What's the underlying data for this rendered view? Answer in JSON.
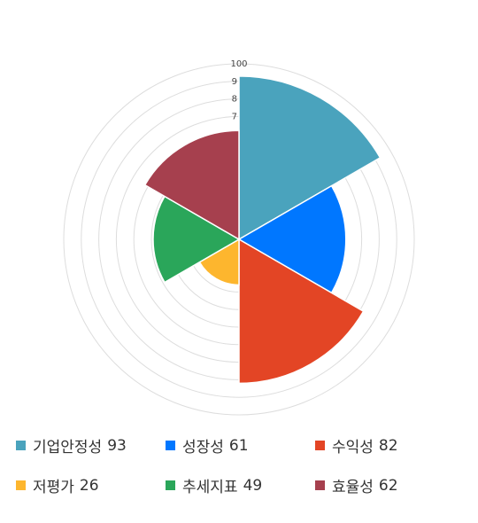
{
  "chart_data": {
    "type": "polar-area",
    "categories": [
      "기업안정성",
      "성장성",
      "수익성",
      "저평가",
      "추세지표",
      "효율성"
    ],
    "values": [
      93,
      61,
      82,
      26,
      49,
      62
    ],
    "colors": [
      "#4aa3bd",
      "#0077ff",
      "#e34525",
      "#fdb62e",
      "#2aa65a",
      "#a6404e"
    ],
    "rlim": [
      0,
      100
    ],
    "ring_ticks": [
      "100",
      "9",
      "8",
      "7"
    ],
    "legend_position": "bottom"
  },
  "legend": [
    {
      "label": "기업안정성",
      "value": "93"
    },
    {
      "label": "성장성",
      "value": "61"
    },
    {
      "label": "수익성",
      "value": "82"
    },
    {
      "label": "저평가",
      "value": "26"
    },
    {
      "label": "추세지표",
      "value": "49"
    },
    {
      "label": "효율성",
      "value": "62"
    }
  ]
}
